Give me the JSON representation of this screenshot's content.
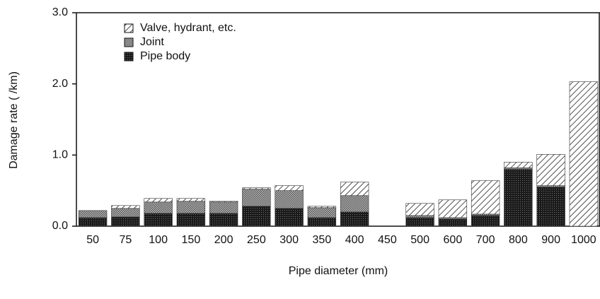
{
  "chart_data": {
    "type": "stacked_bar",
    "xlabel": "Pipe diameter (mm)",
    "ylabel": "Damage rate ( /km)",
    "categories": [
      "50",
      "75",
      "100",
      "150",
      "200",
      "250",
      "300",
      "350",
      "400",
      "450",
      "500",
      "600",
      "700",
      "800",
      "900",
      "1000"
    ],
    "series": [
      {
        "name": "Pipe body",
        "color": "#1a1a1a",
        "pattern": "dense",
        "values": [
          0.12,
          0.13,
          0.18,
          0.18,
          0.18,
          0.28,
          0.25,
          0.12,
          0.2,
          null,
          0.12,
          0.1,
          0.15,
          0.8,
          0.55,
          0
        ]
      },
      {
        "name": "Joint",
        "color": "#555555",
        "pattern": "checker",
        "values": [
          0.1,
          0.12,
          0.16,
          0.17,
          0.16,
          0.24,
          0.25,
          0.14,
          0.23,
          null,
          0.03,
          0.02,
          0.02,
          0.02,
          0.02,
          0
        ]
      },
      {
        "name": "Valve, hydrant, etc.",
        "color": "#222222",
        "pattern": "diagonal",
        "values": [
          0,
          0.04,
          0.05,
          0.04,
          0.01,
          0.02,
          0.07,
          0.02,
          0.19,
          null,
          0.17,
          0.25,
          0.47,
          0.08,
          0.44,
          2.03
        ]
      }
    ],
    "ylim": [
      0,
      3
    ],
    "yticks": [
      {
        "value": 0,
        "label": "0.0"
      },
      {
        "value": 1,
        "label": "1.0"
      },
      {
        "value": 2,
        "label": "2.0"
      },
      {
        "value": 3,
        "label": "3.0"
      }
    ],
    "legend": "upper left"
  }
}
